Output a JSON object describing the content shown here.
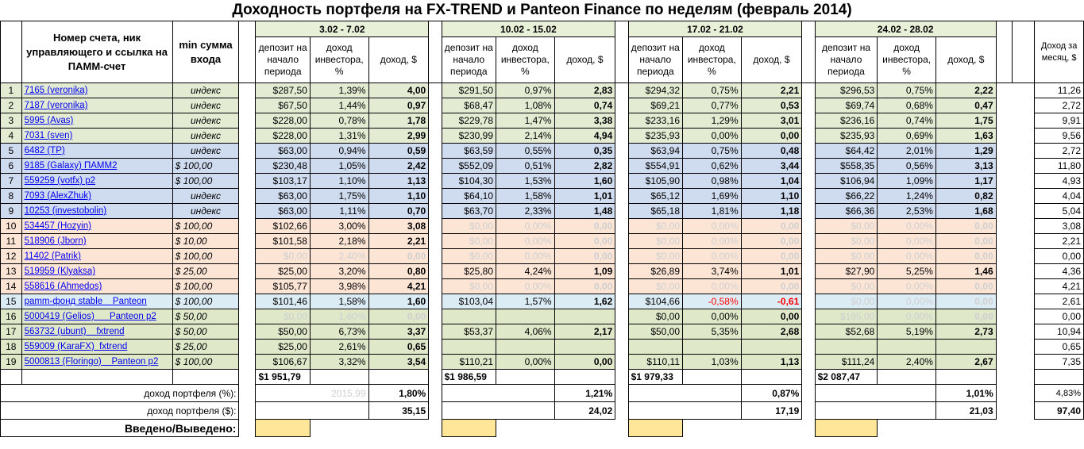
{
  "title": "Доходность портфеля на FX-TREND и Panteon Finance по неделям (февраль 2014)",
  "headers": {
    "account": "Номер счета, ник управляющего и ссылка на ПАММ-счет",
    "min": "min сумма входа",
    "deposit": "депозит на начало периода",
    "investor": "доход инвестора, %",
    "income": "доход, $",
    "month_income": "Доход за месяц, $"
  },
  "weeks": [
    "3.02 - 7.02",
    "10.02 - 15.02",
    "17.02 - 21.02",
    "24.02 - 28.02"
  ],
  "rows": [
    {
      "n": "1",
      "acc": "7165 (veronika)",
      "min": "индекс",
      "bg": "g",
      "w": [
        [
          "$287,50",
          "1,39%",
          "4,00"
        ],
        [
          "$291,50",
          "0,97%",
          "2,83"
        ],
        [
          "$294,32",
          "0,75%",
          "2,21"
        ],
        [
          "$296,53",
          "0,75%",
          "2,22"
        ]
      ],
      "month": "11,26"
    },
    {
      "n": "2",
      "acc": "7187 (veronika)",
      "min": "индекс",
      "bg": "g",
      "w": [
        [
          "$67,50",
          "1,44%",
          "0,97"
        ],
        [
          "$68,47",
          "1,08%",
          "0,74"
        ],
        [
          "$69,21",
          "0,77%",
          "0,53"
        ],
        [
          "$69,74",
          "0,68%",
          "0,47"
        ]
      ],
      "month": "2,72"
    },
    {
      "n": "3",
      "acc": "5995 (Avas)",
      "min": "индекс",
      "bg": "g",
      "w": [
        [
          "$228,00",
          "0,78%",
          "1,78"
        ],
        [
          "$229,78",
          "1,47%",
          "3,38"
        ],
        [
          "$233,16",
          "1,29%",
          "3,01"
        ],
        [
          "$236,16",
          "0,74%",
          "1,75"
        ]
      ],
      "month": "9,91"
    },
    {
      "n": "4",
      "acc": "7031 (sven)",
      "min": "индекс",
      "bg": "g",
      "w": [
        [
          "$228,00",
          "1,31%",
          "2,99"
        ],
        [
          "$230,99",
          "2,14%",
          "4,94"
        ],
        [
          "$235,93",
          "0,00%",
          "0,00"
        ],
        [
          "$235,93",
          "0,69%",
          "1,63"
        ]
      ],
      "month": "9,56"
    },
    {
      "n": "5",
      "acc": "6482 (TP)",
      "min": "индекс",
      "bg": "bl",
      "w": [
        [
          "$63,00",
          "0,94%",
          "0,59"
        ],
        [
          "$63,59",
          "0,55%",
          "0,35"
        ],
        [
          "$63,94",
          "0,75%",
          "0,48"
        ],
        [
          "$64,42",
          "2,01%",
          "1,29"
        ]
      ],
      "month": "2,72"
    },
    {
      "n": "6",
      "acc": "9185 (Galaxy) ПАММ2",
      "min": "$   100,00",
      "bg": "bl",
      "w": [
        [
          "$230,48",
          "1,05%",
          "2,42"
        ],
        [
          "$552,09",
          "0,51%",
          "2,82"
        ],
        [
          "$554,91",
          "0,62%",
          "3,44"
        ],
        [
          "$558,35",
          "0,56%",
          "3,13"
        ]
      ],
      "month": "11,80"
    },
    {
      "n": "7",
      "acc": "559259 (votfx) p2",
      "min": "$   100,00",
      "bg": "bl",
      "w": [
        [
          "$103,17",
          "1,10%",
          "1,13"
        ],
        [
          "$104,30",
          "1,53%",
          "1,60"
        ],
        [
          "$105,90",
          "0,98%",
          "1,04"
        ],
        [
          "$106,94",
          "1,09%",
          "1,17"
        ]
      ],
      "month": "4,93"
    },
    {
      "n": "8",
      "acc": "7093 (AlexZhuk)",
      "min": "индекс",
      "bg": "bl",
      "w": [
        [
          "$63,00",
          "1,75%",
          "1,10"
        ],
        [
          "$64,10",
          "1,58%",
          "1,01"
        ],
        [
          "$65,12",
          "1,69%",
          "1,10"
        ],
        [
          "$66,22",
          "1,24%",
          "0,82"
        ]
      ],
      "month": "4,04"
    },
    {
      "n": "9",
      "acc": "10253 (investobolin)",
      "min": "индекс",
      "bg": "bl",
      "w": [
        [
          "$63,00",
          "1,11%",
          "0,70"
        ],
        [
          "$63,70",
          "2,33%",
          "1,48"
        ],
        [
          "$65,18",
          "1,81%",
          "1,18"
        ],
        [
          "$66,36",
          "2,53%",
          "1,68"
        ]
      ],
      "month": "5,04"
    },
    {
      "n": "10",
      "acc": "534457 (Hozyin)",
      "min": "$   100,00",
      "bg": "or",
      "w": [
        [
          "$102,66",
          "3,00%",
          "3,08"
        ],
        [
          "$0,00",
          "0,00%",
          "0,00"
        ],
        [
          "$0,00",
          "0,00%",
          "0,00"
        ],
        [
          "$0,00",
          "0,00%",
          "0,00"
        ]
      ],
      "fade": [
        1,
        2,
        3
      ],
      "month": "3,08"
    },
    {
      "n": "11",
      "acc": "518906 (Jborn)",
      "min": "$     10,00",
      "bg": "or",
      "w": [
        [
          "$101,58",
          "2,18%",
          "2,21"
        ],
        [
          "$0,00",
          "0,00%",
          "0,00"
        ],
        [
          "$0,00",
          "0,00%",
          "0,00"
        ],
        [
          "$0,00",
          "0,00%",
          "0,00"
        ]
      ],
      "fade": [
        1,
        2,
        3
      ],
      "month": "2,21"
    },
    {
      "n": "12",
      "acc": "11402 (Patrik)",
      "min": "$   100,00",
      "bg": "or",
      "w": [
        [
          "$0,00",
          "2,40%",
          "0,00"
        ],
        [
          "$0,00",
          "0,00%",
          "0,00"
        ],
        [
          "$0,00",
          "0,00%",
          "0,00"
        ],
        [
          "$0,00",
          "0,00%",
          "0,00"
        ]
      ],
      "fade": [
        0,
        1,
        2,
        3
      ],
      "month": "0,00"
    },
    {
      "n": "13",
      "acc": "519959 (Klyaksa)",
      "min": "$     25,00",
      "bg": "or",
      "w": [
        [
          "$25,00",
          "3,20%",
          "0,80"
        ],
        [
          "$25,80",
          "4,24%",
          "1,09"
        ],
        [
          "$26,89",
          "3,74%",
          "1,01"
        ],
        [
          "$27,90",
          "5,25%",
          "1,46"
        ]
      ],
      "month": "4,36"
    },
    {
      "n": "14",
      "acc": "558616 (Ahmedos)",
      "min": "$   100,00",
      "bg": "or",
      "w": [
        [
          "$105,77",
          "3,98%",
          "4,21"
        ],
        [
          "$0,00",
          "0,00%",
          "0,00"
        ],
        [
          "$0,00",
          "0,00%",
          "0,00"
        ],
        [
          "$0,00",
          "0,00%",
          "0,00"
        ]
      ],
      "fade": [
        1,
        2,
        3
      ],
      "month": "4,21"
    },
    {
      "n": "15",
      "acc": "pamm-фонд stable    Panteon",
      "min": "$   100,00",
      "bg": "cy",
      "w": [
        [
          "$101,46",
          "1,58%",
          "1,60"
        ],
        [
          "$103,04",
          "1,57%",
          "1,62"
        ],
        [
          "$104,66",
          "-0,58%",
          "-0,61"
        ],
        [
          "$0,00",
          "0,00%",
          "0,00"
        ]
      ],
      "fade": [
        3
      ],
      "neg": [
        2
      ],
      "month": "2,61"
    },
    {
      "n": "16",
      "acc": "5000419 (Gelios)      Panteon p2",
      "min": "$     50,00",
      "bg": "lg",
      "w": [
        [
          "$0,00",
          "1,60%",
          "0,00"
        ],
        [
          "",
          "",
          ""
        ],
        [
          "$0,00",
          "0,00%",
          "0,00"
        ],
        [
          "$195,00",
          "0,00%",
          "0,00"
        ]
      ],
      "fade": [
        0,
        3
      ],
      "month": "0,00"
    },
    {
      "n": "17",
      "acc": "563732 (ubunt)    fxtrend",
      "min": "$     50,00",
      "bg": "lg",
      "w": [
        [
          "$50,00",
          "6,73%",
          "3,37"
        ],
        [
          "$53,37",
          "4,06%",
          "2,17"
        ],
        [
          "$50,00",
          "5,35%",
          "2,68"
        ],
        [
          "$52,68",
          "5,19%",
          "2,73"
        ]
      ],
      "month": "10,94"
    },
    {
      "n": "18",
      "acc": "559009 (KaraFX)  fxtrend",
      "min": "$     25,00",
      "bg": "lg",
      "w": [
        [
          "$25,00",
          "2,61%",
          "0,65"
        ],
        [
          "",
          "",
          ""
        ],
        [
          "",
          "",
          ""
        ],
        [
          "",
          "",
          ""
        ]
      ],
      "month": "0,65"
    },
    {
      "n": "19",
      "acc": "5000813 (Floringo)    Panteon p2",
      "min": "$   100,00",
      "bg": "lg",
      "w": [
        [
          "$106,67",
          "3,32%",
          "3,54"
        ],
        [
          "$110,21",
          "0,00%",
          "0,00"
        ],
        [
          "$110,11",
          "1,03%",
          "1,13"
        ],
        [
          "$111,24",
          "2,40%",
          "2,67"
        ]
      ],
      "month": "7,35"
    }
  ],
  "totals": [
    "$1 951,79",
    "$1 986,59",
    "$1 979,33",
    "$2 087,47"
  ],
  "pct_label": "доход портфеля (%):",
  "pct_ghost": "2015,99",
  "pct": [
    "1,80%",
    "1,21%",
    "0,87%",
    "1,01%"
  ],
  "pct_month": "4,83%",
  "usd_label": "доход портфеля ($):",
  "usd": [
    "35,15",
    "24,02",
    "17,19",
    "21,03"
  ],
  "usd_month": "97,40",
  "io_label": "Введено/Выведено:"
}
